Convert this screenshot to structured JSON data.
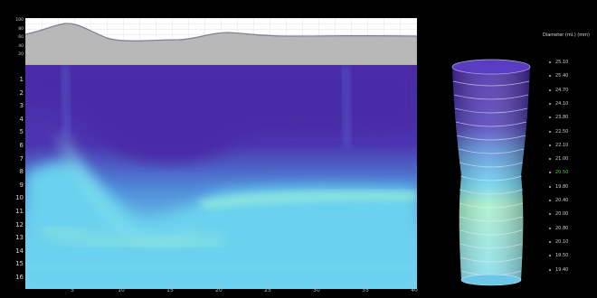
{
  "depth_rows": [
    "1",
    "2",
    "3",
    "4",
    "5",
    "6",
    "7",
    "8",
    "9",
    "10",
    "11",
    "12",
    "13",
    "14",
    "15",
    "16"
  ],
  "top_axis_labels": [
    "100",
    "80",
    "60",
    "40",
    "20"
  ],
  "x_ticks": [
    "5",
    "10",
    "15",
    "20",
    "25",
    "30",
    "35",
    "40"
  ],
  "legend": {
    "title": "Diameter (mi.) (mm)",
    "values": [
      "25.10",
      "25.40",
      "24.70",
      "24.10",
      "23.80",
      "22.50",
      "22.10",
      "21.00",
      "20.50",
      "19.80",
      "20.40",
      "20.00",
      "20.80",
      "20.10",
      "19.50",
      "19.40"
    ],
    "highlight_value": "20.50"
  },
  "colors": {
    "background": "#000000",
    "deep_purple": "#4a2aa6",
    "cyan_blue": "#5ac8e8",
    "light_cyan": "#8ee8ec",
    "pale_green": "#a8f0c8",
    "highlight_green": "#5ec64e"
  }
}
